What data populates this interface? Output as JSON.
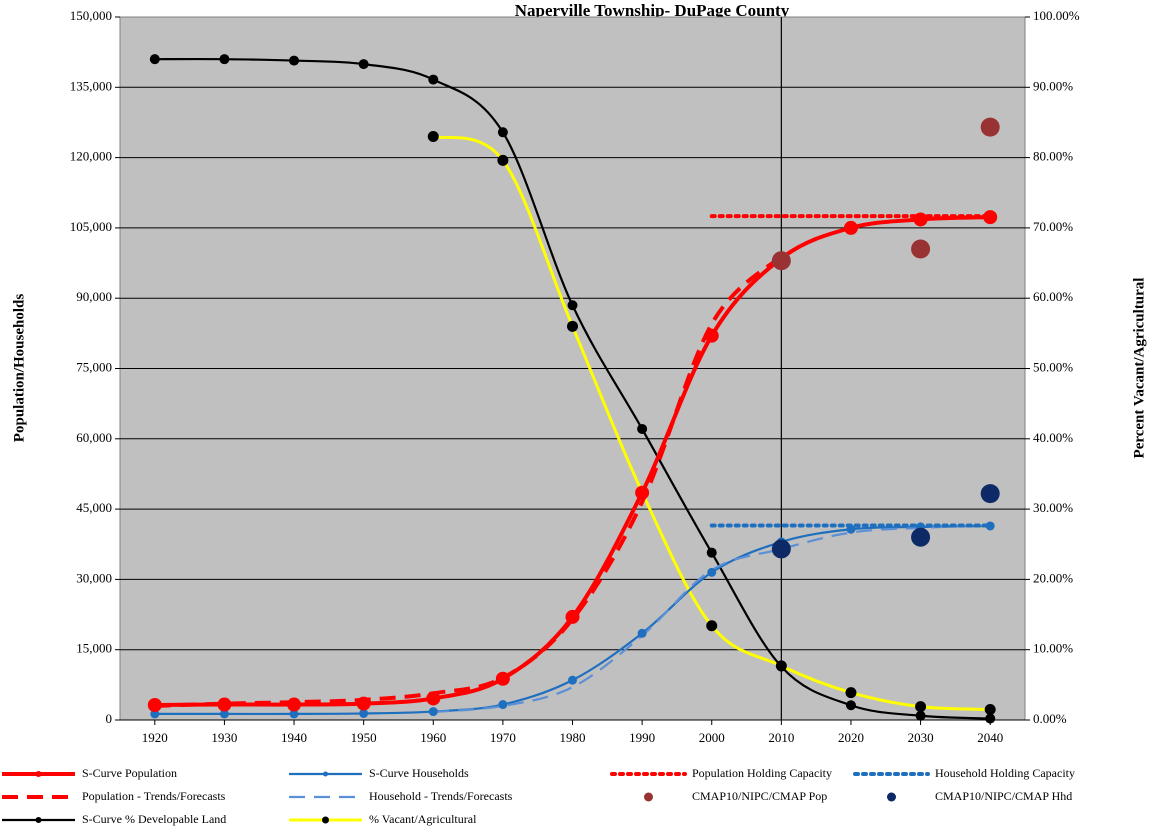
{
  "chart_data": {
    "type": "line",
    "title": "Naperville Township- DuPage County",
    "ylabel": "Population/Households",
    "y2label": "Percent Vacant/Agricultural",
    "x": [
      1920,
      1930,
      1940,
      1950,
      1960,
      1970,
      1980,
      1990,
      2000,
      2010,
      2020,
      2030,
      2040
    ],
    "ylim": [
      0,
      150000
    ],
    "y2lim": [
      0,
      1
    ],
    "grid": true,
    "legend_position": "bottom",
    "x_tick_labels": [
      "1920",
      "1930",
      "1940",
      "1950",
      "1960",
      "1970",
      "1980",
      "1990",
      "2000",
      "2010",
      "2020",
      "2030",
      "2040"
    ],
    "y_tick_labels": [
      "0",
      "15,000",
      "30,000",
      "45,000",
      "60,000",
      "75,000",
      "90,000",
      "105,000",
      "120,000",
      "135,000",
      "150,000"
    ],
    "y2_tick_labels": [
      "0.00%",
      "10.00%",
      "20.00%",
      "30.00%",
      "40.00%",
      "50.00%",
      "60.00%",
      "70.00%",
      "80.00%",
      "90.00%",
      "100.00%"
    ],
    "reference_line_x": 2010,
    "series": [
      {
        "name": "S-Curve Population",
        "axis": "left",
        "color": "#ff0000",
        "style": "solid",
        "marker": "circle",
        "x": [
          1920,
          1930,
          1940,
          1950,
          1960,
          1970,
          1980,
          1990,
          2000,
          2010,
          2020,
          2030,
          2040
        ],
        "values": [
          3200,
          3300,
          3300,
          3500,
          4600,
          8800,
          22000,
          48500,
          82000,
          98500,
          105000,
          106800,
          107300
        ]
      },
      {
        "name": "S-Curve Households",
        "axis": "left",
        "color": "#1f6fbf",
        "style": "solid",
        "marker": "small-circle",
        "x": [
          1920,
          1930,
          1940,
          1950,
          1960,
          1970,
          1980,
          1990,
          2000,
          2010,
          2020,
          2030,
          2040
        ],
        "values": [
          1300,
          1300,
          1300,
          1400,
          1800,
          3300,
          8500,
          18500,
          31500,
          38000,
          40700,
          41200,
          41400
        ]
      },
      {
        "name": "Population Holding Capacity",
        "axis": "left",
        "color": "#ff0000",
        "style": "dotted",
        "marker": "none",
        "x": [
          2000,
          2040
        ],
        "values": [
          107500,
          107500
        ]
      },
      {
        "name": "Household Holding Capacity",
        "axis": "left",
        "color": "#1f6fbf",
        "style": "dotted",
        "marker": "none",
        "x": [
          2000,
          2040
        ],
        "values": [
          41500,
          41500
        ]
      },
      {
        "name": "Population - Trends/Forecasts",
        "axis": "left",
        "color": "#ff0000",
        "style": "dashed",
        "marker": "none",
        "x": [
          1920,
          1930,
          1940,
          1950,
          1960,
          1970,
          1980,
          1990,
          2000,
          2010
        ],
        "values": [
          3000,
          3500,
          3800,
          4300,
          5700,
          9000,
          21500,
          46500,
          84500,
          99000
        ]
      },
      {
        "name": "Household - Trends/Forecasts",
        "axis": "left",
        "color": "#5b8fd6",
        "style": "dashed",
        "marker": "none",
        "x": [
          1960,
          1970,
          1980,
          1990,
          2000,
          2010,
          2020,
          2030,
          2040
        ],
        "values": [
          1700,
          3000,
          7000,
          18000,
          32000,
          36500,
          40000,
          41000,
          41500
        ]
      },
      {
        "name": "CMAP10/NIPC/CMAP Pop",
        "axis": "left",
        "color": "#993333",
        "style": "none",
        "marker": "big-circle",
        "x": [
          2010,
          2030,
          2040
        ],
        "values": [
          98000,
          100500,
          126500
        ]
      },
      {
        "name": "CMAP10/NIPC/CMAP Hhd",
        "axis": "left",
        "color": "#0d2a66",
        "style": "none",
        "marker": "big-circle",
        "x": [
          2010,
          2030,
          2040
        ],
        "values": [
          36500,
          39000,
          48300
        ]
      },
      {
        "name": "S-Curve % Developable Land",
        "axis": "right",
        "color": "#000000",
        "style": "solid",
        "marker": "circle",
        "x": [
          1920,
          1930,
          1940,
          1950,
          1960,
          1970,
          1980,
          1990,
          2000,
          2010,
          2020,
          2030,
          2040
        ],
        "values": [
          0.94,
          0.94,
          0.938,
          0.933,
          0.911,
          0.836,
          0.59,
          0.414,
          0.238,
          0.076,
          0.021,
          0.006,
          0.002
        ]
      },
      {
        "name": "% Vacant/Agricultural",
        "axis": "right",
        "color": "#ffff00",
        "style": "solid",
        "marker": "circle-black",
        "x": [
          1960,
          1970,
          1980,
          1990,
          2000,
          2010,
          2020,
          2030,
          2040
        ],
        "values": [
          0.83,
          0.796,
          0.56,
          0.324,
          0.134,
          0.077,
          0.039,
          0.019,
          0.015
        ]
      }
    ]
  }
}
